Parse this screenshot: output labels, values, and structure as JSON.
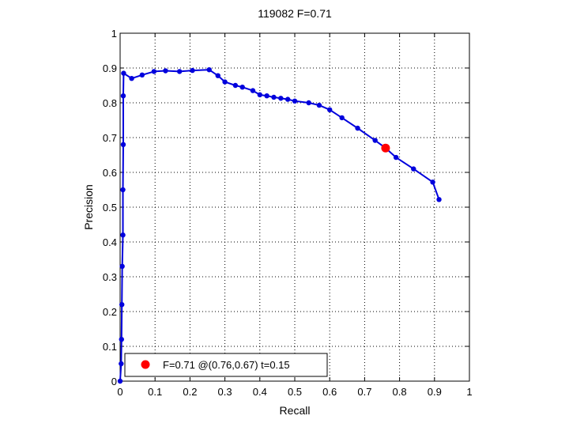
{
  "chart_data": {
    "type": "line",
    "title": "119082 F=0.71",
    "xlabel": "Recall",
    "ylabel": "Precision",
    "xlim": [
      0,
      1
    ],
    "ylim": [
      0,
      1
    ],
    "xticks": [
      "0",
      "0.1",
      "0.2",
      "0.3",
      "0.4",
      "0.5",
      "0.6",
      "0.7",
      "0.8",
      "0.9",
      "1"
    ],
    "yticks": [
      "0",
      "0.1",
      "0.2",
      "0.3",
      "0.4",
      "0.5",
      "0.6",
      "0.7",
      "0.8",
      "0.9",
      "1"
    ],
    "grid": true,
    "legend_position": "bottom-left",
    "series": [
      {
        "color": "#0000dd",
        "points": [
          [
            0.0,
            0.0
          ],
          [
            0.003,
            0.05
          ],
          [
            0.004,
            0.12
          ],
          [
            0.005,
            0.22
          ],
          [
            0.006,
            0.33
          ],
          [
            0.008,
            0.42
          ],
          [
            0.008,
            0.55
          ],
          [
            0.009,
            0.68
          ],
          [
            0.009,
            0.82
          ],
          [
            0.01,
            0.885
          ],
          [
            0.033,
            0.87
          ],
          [
            0.063,
            0.88
          ],
          [
            0.097,
            0.89
          ],
          [
            0.13,
            0.892
          ],
          [
            0.17,
            0.89
          ],
          [
            0.207,
            0.893
          ],
          [
            0.255,
            0.895
          ],
          [
            0.28,
            0.878
          ],
          [
            0.3,
            0.86
          ],
          [
            0.33,
            0.85
          ],
          [
            0.35,
            0.845
          ],
          [
            0.38,
            0.835
          ],
          [
            0.4,
            0.823
          ],
          [
            0.42,
            0.82
          ],
          [
            0.44,
            0.816
          ],
          [
            0.46,
            0.813
          ],
          [
            0.48,
            0.81
          ],
          [
            0.5,
            0.805
          ],
          [
            0.54,
            0.8
          ],
          [
            0.57,
            0.793
          ],
          [
            0.6,
            0.78
          ],
          [
            0.635,
            0.757
          ],
          [
            0.68,
            0.727
          ],
          [
            0.73,
            0.692
          ],
          [
            0.76,
            0.67
          ],
          [
            0.79,
            0.643
          ],
          [
            0.84,
            0.61
          ],
          [
            0.895,
            0.572
          ],
          [
            0.913,
            0.522
          ]
        ]
      }
    ],
    "highlight": {
      "x": 0.76,
      "y": 0.67,
      "color": "#ff0000",
      "label": "F=0.71 @(0.76,0.67) t=0.15"
    }
  }
}
